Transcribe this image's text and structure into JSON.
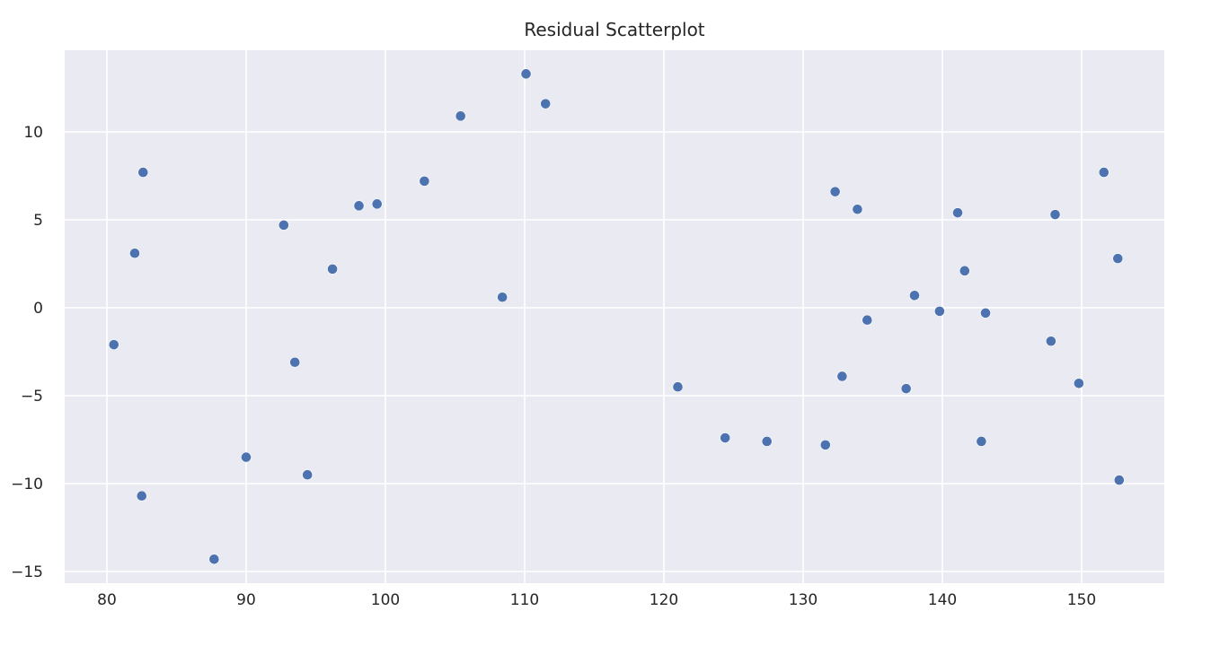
{
  "chart_data": {
    "type": "scatter",
    "title": "Residual Scatterplot",
    "xlabel": "",
    "ylabel": "",
    "xlim": [
      77,
      156
    ],
    "ylim": [
      -15.5,
      14.5
    ],
    "xticks": [
      80,
      90,
      100,
      110,
      120,
      130,
      140,
      150
    ],
    "yticks": [
      -15,
      -10,
      -5,
      0,
      5,
      10
    ],
    "grid": true,
    "legend": "none",
    "colors": {
      "background": "#eaeaf2",
      "grid": "#ffffff",
      "marker": "#4c72b0",
      "text": "#262626"
    },
    "series": [
      {
        "x": [
          80.5,
          82.0,
          82.5,
          82.6,
          87.7,
          90.0,
          92.7,
          93.5,
          94.4,
          96.2,
          98.1,
          99.4,
          102.8,
          105.4,
          108.4,
          110.1,
          111.5,
          121.0,
          124.4,
          127.4,
          131.6,
          132.3,
          132.8,
          133.9,
          134.6,
          137.4,
          138.0,
          139.8,
          141.1,
          141.6,
          142.8,
          143.1,
          147.8,
          148.1,
          149.8,
          151.6,
          152.6,
          152.7
        ],
        "y": [
          -2.1,
          3.1,
          -10.7,
          7.7,
          -14.3,
          -8.5,
          4.7,
          -3.1,
          -9.5,
          2.2,
          5.8,
          5.9,
          7.2,
          10.9,
          0.6,
          13.3,
          11.6,
          -4.5,
          -7.4,
          -7.6,
          -7.8,
          6.6,
          -3.9,
          5.6,
          -0.7,
          -4.6,
          0.7,
          -0.2,
          5.4,
          2.1,
          -7.6,
          -0.3,
          -1.9,
          5.3,
          -4.3,
          7.7,
          2.8,
          -9.8
        ]
      }
    ]
  }
}
